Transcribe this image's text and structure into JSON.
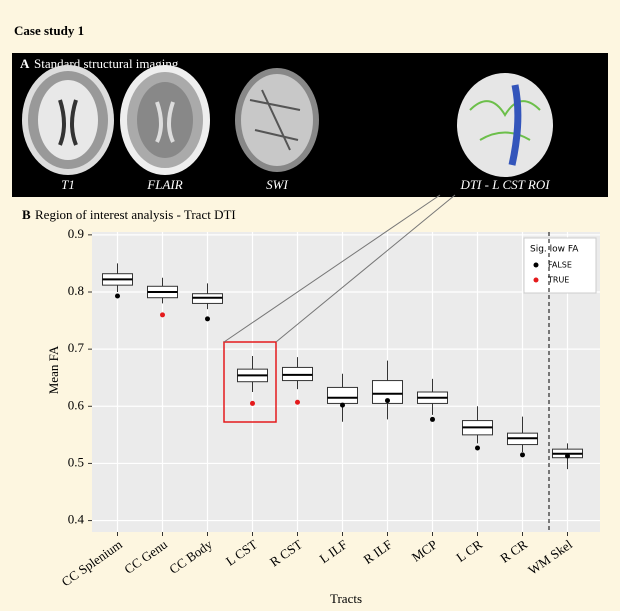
{
  "header": {
    "title": "Case study 1"
  },
  "panel_a": {
    "label": "A",
    "title": "Standard structural imaging",
    "images": [
      "T1",
      "FLAIR",
      "SWI",
      "DTI - L CST ROI"
    ]
  },
  "chart_data": {
    "type": "box",
    "panel_label": "B",
    "title": "Region of interest analysis - Tract DTI",
    "x_label": "Tracts",
    "y_label": "Mean FA",
    "categories": [
      "CC Splenium",
      "CC Genu",
      "CC Body",
      "L CST",
      "R CST",
      "L ILF",
      "R ILF",
      "MCP",
      "L CR",
      "R CR",
      "WM Skel"
    ],
    "lower": [
      0.8,
      0.78,
      0.77,
      0.625,
      0.63,
      0.573,
      0.577,
      0.585,
      0.535,
      0.52,
      0.49
    ],
    "q1": [
      0.812,
      0.79,
      0.78,
      0.643,
      0.645,
      0.605,
      0.605,
      0.605,
      0.55,
      0.533,
      0.51
    ],
    "median": [
      0.822,
      0.8,
      0.79,
      0.654,
      0.655,
      0.615,
      0.622,
      0.615,
      0.563,
      0.544,
      0.517
    ],
    "q3": [
      0.832,
      0.81,
      0.797,
      0.665,
      0.668,
      0.633,
      0.645,
      0.625,
      0.575,
      0.553,
      0.525
    ],
    "upper": [
      0.85,
      0.825,
      0.815,
      0.688,
      0.686,
      0.657,
      0.68,
      0.648,
      0.6,
      0.582,
      0.535
    ],
    "patient": [
      0.793,
      0.76,
      0.753,
      0.605,
      0.607,
      0.602,
      0.61,
      0.577,
      0.527,
      0.515,
      0.513
    ],
    "sig_low_fa": [
      false,
      true,
      false,
      true,
      true,
      false,
      false,
      false,
      false,
      false,
      false
    ],
    "legend": {
      "title": "Sig. low FA",
      "position": "top-right",
      "entries": [
        {
          "name": "FALSE",
          "color": "#000000"
        },
        {
          "name": "TRUE",
          "color": "#e41a1c"
        }
      ]
    },
    "ylim": [
      0.38,
      0.905
    ],
    "yticks": [
      0.4,
      0.5,
      0.6,
      0.7,
      0.8,
      0.9
    ],
    "grid": true
  }
}
